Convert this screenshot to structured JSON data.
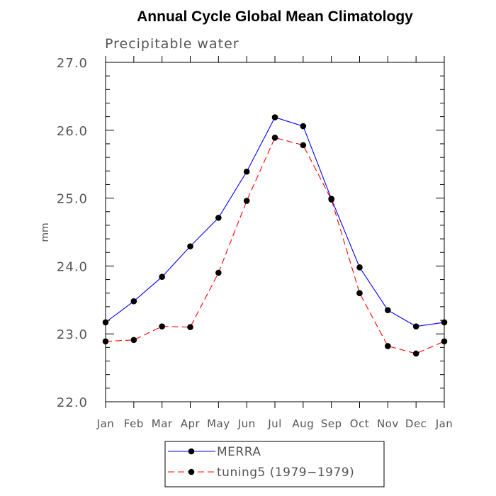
{
  "chart_data": {
    "type": "line",
    "title": "Annual Cycle Global Mean Climatology",
    "subtitle": "Precipitable water",
    "xlabel": "",
    "ylabel": "mm",
    "categories": [
      "Jan",
      "Feb",
      "Mar",
      "Apr",
      "May",
      "Jun",
      "Jul",
      "Aug",
      "Sep",
      "Oct",
      "Nov",
      "Dec",
      "Jan"
    ],
    "ylim": [
      22.0,
      27.0
    ],
    "yticks": [
      "22.0",
      "23.0",
      "24.0",
      "25.0",
      "26.0",
      "27.0"
    ],
    "grid": false,
    "legend_position": "bottom",
    "series": [
      {
        "name": "MERRA",
        "color": "#0000ff",
        "line_style": "solid",
        "marker": "filled-circle",
        "values": [
          23.17,
          23.48,
          23.84,
          24.29,
          24.71,
          25.39,
          26.19,
          26.06,
          24.99,
          23.98,
          23.35,
          23.11,
          23.17
        ]
      },
      {
        "name": "tuning5 (1979−1979)",
        "color": "#ff0000",
        "line_style": "dashed",
        "marker": "filled-circle",
        "values": [
          22.89,
          22.91,
          23.11,
          23.1,
          23.9,
          24.96,
          25.89,
          25.78,
          24.98,
          23.6,
          22.82,
          22.71,
          22.89
        ]
      }
    ]
  }
}
